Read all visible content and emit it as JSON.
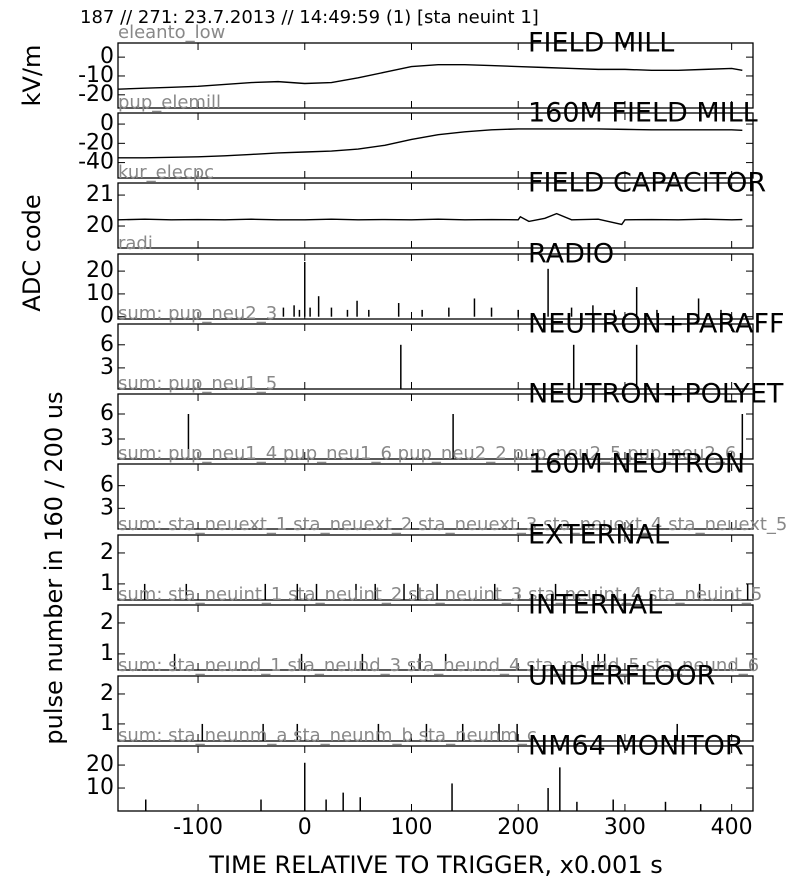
{
  "title": "187 // 271:   23.7.2013 // 14:49:59 (1)  [sta neuint 1]",
  "shared_ylabel": "pulse number in 160 / 200 us",
  "chart_data": [
    {
      "type": "line",
      "title": "FIELD MILL",
      "label": "eleanto_low",
      "ylabel": "kV/m",
      "color": "#000000",
      "xlim": [
        -175,
        420
      ],
      "ylim": [
        -27,
        7.5
      ],
      "yticks": [
        0,
        -10,
        -20
      ],
      "x": [
        -175,
        -150,
        -125,
        -100,
        -75,
        -50,
        -25,
        0,
        25,
        50,
        75,
        100,
        125,
        150,
        175,
        200,
        225,
        250,
        275,
        300,
        325,
        350,
        375,
        400,
        410
      ],
      "values": [
        -17,
        -16.5,
        -16,
        -15.5,
        -14.5,
        -13.5,
        -13,
        -14,
        -13.5,
        -11,
        -8,
        -5,
        -4,
        -4,
        -4.5,
        -5,
        -5.5,
        -6,
        -6.5,
        -6.5,
        -7,
        -7,
        -6.5,
        -6,
        -7
      ]
    },
    {
      "type": "line",
      "title": "160M FIELD MILL",
      "label": "pup_elemill",
      "color": "#000000",
      "xlim": [
        -175,
        420
      ],
      "ylim": [
        -56,
        11.5
      ],
      "yticks": [
        0,
        -20,
        -40
      ],
      "x": [
        -175,
        -150,
        -125,
        -100,
        -75,
        -50,
        -25,
        0,
        25,
        50,
        75,
        100,
        125,
        150,
        175,
        200,
        225,
        250,
        275,
        300,
        325,
        350,
        375,
        400,
        410
      ],
      "values": [
        -35,
        -35,
        -34.5,
        -34,
        -33,
        -31.5,
        -30,
        -29,
        -28,
        -26,
        -22,
        -16,
        -11,
        -8,
        -6,
        -5,
        -5,
        -5,
        -5,
        -5.5,
        -6,
        -6,
        -6,
        -6,
        -6.5
      ]
    },
    {
      "type": "line",
      "title": "FIELD CAPACITOR",
      "label": "kur_elecpc",
      "ylabel": "ADC code",
      "color": "#000000",
      "xlim": [
        -175,
        420
      ],
      "ylim": [
        19.29,
        21.39
      ],
      "yticks": [
        20,
        21
      ],
      "x": [
        -175,
        -150,
        -125,
        -100,
        -75,
        -50,
        -25,
        0,
        25,
        50,
        75,
        100,
        125,
        150,
        175,
        200,
        202,
        210,
        225,
        236,
        250,
        275,
        297,
        300,
        325,
        350,
        375,
        400,
        410
      ],
      "values": [
        20.2,
        20.22,
        20.2,
        20.21,
        20.2,
        20.22,
        20.2,
        20.2,
        20.22,
        20.2,
        20.21,
        20.2,
        20.22,
        20.2,
        20.21,
        20.2,
        20.3,
        20.15,
        20.25,
        20.4,
        20.2,
        20.22,
        20.05,
        20.2,
        20.21,
        20.2,
        20.22,
        20.2,
        20.21
      ]
    },
    {
      "type": "bar",
      "title": "RADIO",
      "label": "radi",
      "color": "#000000",
      "xlim": [
        -175,
        420
      ],
      "ylim": [
        -1,
        27.5
      ],
      "yticks": [
        0,
        10,
        20
      ],
      "x": [
        -20,
        -10,
        -5,
        0,
        5,
        13,
        25,
        40,
        49,
        60,
        88,
        110,
        135,
        159,
        175,
        200,
        228,
        250,
        270,
        290,
        311,
        330,
        369,
        390
      ],
      "values": [
        4,
        5,
        3,
        24,
        4,
        9,
        4,
        3,
        7,
        3,
        6,
        3,
        4,
        8,
        4,
        3,
        21,
        4,
        5,
        3,
        13,
        3,
        8,
        3
      ]
    },
    {
      "type": "bar",
      "title": "NEUTRON+PARAFF",
      "label": "sum: pup_neu2_3",
      "color": "#000000",
      "xlim": [
        -175,
        420
      ],
      "ylim": [
        0.26,
        8.7
      ],
      "yticks": [
        3,
        6
      ],
      "x": [
        90,
        252,
        311
      ],
      "values": [
        6,
        6,
        6
      ]
    },
    {
      "type": "bar",
      "title": "NEUTRON+POLYET",
      "label": "sum: pup_neu1_5",
      "color": "#000000",
      "xlim": [
        -175,
        420
      ],
      "ylim": [
        0.6,
        8.4
      ],
      "yticks": [
        3,
        6
      ],
      "x": [
        -109,
        139,
        410
      ],
      "values": [
        6,
        6,
        6
      ]
    },
    {
      "type": "bar",
      "title": "160M NEUTRON",
      "label": "sum: pup_neu1_4 pup_neu1_6 pup_neu2_2 pup_neu2_5 pup_neu2_6",
      "color": "#000000",
      "xlim": [
        -175,
        420
      ],
      "ylim": [
        0.26,
        8.87
      ],
      "yticks": [
        3,
        6
      ],
      "x": [],
      "values": []
    },
    {
      "type": "bar",
      "title": "EXTERNAL",
      "label": "sum: sta_neuext_1 sta_neuext_2 sta_neuext_3 sta_neuext_4 sta_neuext_5",
      "color": "#000000",
      "xlim": [
        -175,
        420
      ],
      "ylim": [
        0.48,
        2.58
      ],
      "yticks": [
        1,
        2
      ],
      "x": [
        -150,
        -111,
        -37,
        -7,
        11,
        48,
        66,
        93,
        106,
        124,
        178,
        235,
        370,
        415
      ],
      "values": [
        1,
        1,
        1,
        1,
        1,
        1,
        1,
        1,
        1,
        1,
        1,
        1,
        1,
        1
      ]
    },
    {
      "type": "bar",
      "title": "INTERNAL",
      "label": "sum: sta_neuint_1 sta_neuint_2 sta_neuint_3 sta_neuint_4 sta_neuint_5",
      "color": "#000000",
      "xlim": [
        -175,
        420
      ],
      "ylim": [
        0.48,
        2.58
      ],
      "yticks": [
        1,
        2
      ],
      "x": [
        -122,
        -3,
        54,
        108,
        132,
        260,
        275,
        281
      ],
      "values": [
        1,
        1,
        1,
        1,
        1,
        1,
        1,
        1
      ]
    },
    {
      "type": "bar",
      "title": "UNDERFLOOR",
      "label": "sum: sta_neund_1 sta_neund_3 sta_neund_4 sta_neund_5 sta_neund_6",
      "color": "#000000",
      "xlim": [
        -175,
        420
      ],
      "ylim": [
        0.43,
        2.6
      ],
      "yticks": [
        1,
        2
      ],
      "x": [
        -96,
        -39,
        -7,
        69,
        114,
        148,
        182,
        199,
        349
      ],
      "values": [
        1,
        1,
        1,
        1,
        1,
        1,
        1,
        1,
        1
      ]
    },
    {
      "type": "bar",
      "title": "NM64 MONITOR",
      "label": "sum: sta_neunm_a sta_neunm_b sta_neunm_c",
      "color": "#000000",
      "xlim": [
        -175,
        420
      ],
      "ylim": [
        0,
        28.3
      ],
      "yticks": [
        10,
        20
      ],
      "x": [
        -149,
        -41,
        0,
        20,
        36,
        52,
        138,
        228,
        239,
        255,
        289,
        338,
        371
      ],
      "values": [
        5,
        5,
        21,
        5,
        8,
        6,
        12,
        10,
        19,
        4,
        5,
        4,
        3
      ],
      "xlabel": "TIME RELATIVE TO TRIGGER,   x0.001 s",
      "xticks": [
        -100,
        0,
        100,
        200,
        300,
        400
      ]
    }
  ]
}
